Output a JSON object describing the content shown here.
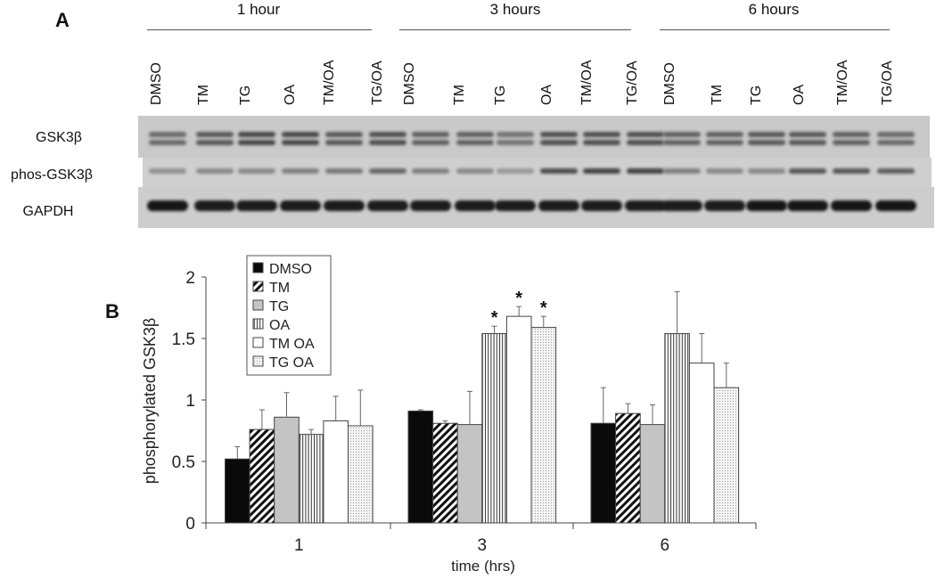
{
  "panel_a": {
    "label": "A",
    "groups": [
      "1 hour",
      "3 hours",
      "6 hours"
    ],
    "lanes": [
      "DMSO",
      "TM",
      "TG",
      "OA",
      "TM/OA",
      "TG/OA",
      "DMSO",
      "TM",
      "TG",
      "OA",
      "TM/OA",
      "TG/OA",
      "DMSO",
      "TM",
      "TG",
      "OA",
      "TM/OA",
      "TG/OA"
    ],
    "rows": [
      "GSK3β",
      "phos-GSK3β",
      "GAPDH"
    ],
    "band_intensity": {
      "GSK3b": [
        0.55,
        0.65,
        0.75,
        0.75,
        0.65,
        0.7,
        0.6,
        0.6,
        0.5,
        0.7,
        0.7,
        0.7,
        0.6,
        0.6,
        0.65,
        0.65,
        0.6,
        0.55
      ],
      "phos-GSK3b": [
        0.35,
        0.4,
        0.4,
        0.45,
        0.5,
        0.6,
        0.45,
        0.4,
        0.3,
        0.75,
        0.8,
        0.8,
        0.45,
        0.4,
        0.4,
        0.7,
        0.7,
        0.65
      ],
      "GAPDH": [
        0.95,
        0.9,
        0.9,
        0.9,
        0.9,
        0.9,
        0.9,
        0.9,
        0.9,
        0.9,
        0.9,
        0.9,
        0.9,
        0.9,
        0.95,
        0.95,
        0.95,
        0.95
      ]
    }
  },
  "chart_data": {
    "panel_label": "B",
    "type": "bar",
    "categories": [
      "1",
      "3",
      "6"
    ],
    "xlabel": "time (hrs)",
    "ylabel": "phosphorylated GSK3β",
    "ylim": [
      0,
      2
    ],
    "yticks": [
      "0",
      "0.5",
      "1",
      "1.5",
      "2"
    ],
    "grid": false,
    "legend_position": "top-left",
    "series": [
      {
        "name": "DMSO",
        "pattern": "solid-black",
        "values": [
          0.52,
          0.91,
          0.81
        ],
        "errors": [
          0.1,
          0.01,
          0.29
        ],
        "significant": [
          false,
          false,
          false
        ]
      },
      {
        "name": "TM",
        "pattern": "diagonal-hatch",
        "values": [
          0.76,
          0.81,
          0.89
        ],
        "errors": [
          0.16,
          0.02,
          0.08
        ],
        "significant": [
          false,
          false,
          false
        ]
      },
      {
        "name": "TG",
        "pattern": "solid-gray",
        "values": [
          0.86,
          0.8,
          0.8
        ],
        "errors": [
          0.2,
          0.27,
          0.16
        ],
        "significant": [
          false,
          false,
          false
        ]
      },
      {
        "name": "OA",
        "pattern": "vertical-lines",
        "values": [
          0.72,
          1.54,
          1.54
        ],
        "errors": [
          0.04,
          0.06,
          0.34
        ],
        "significant": [
          false,
          true,
          false
        ]
      },
      {
        "name": "TM OA",
        "pattern": "white",
        "values": [
          0.83,
          1.68,
          1.3
        ],
        "errors": [
          0.2,
          0.08,
          0.24
        ],
        "significant": [
          false,
          true,
          false
        ]
      },
      {
        "name": "TG OA",
        "pattern": "dotted",
        "values": [
          0.79,
          1.59,
          1.1
        ],
        "errors": [
          0.29,
          0.09,
          0.2
        ],
        "significant": [
          false,
          true,
          false
        ]
      }
    ],
    "significance_marker": "*"
  }
}
